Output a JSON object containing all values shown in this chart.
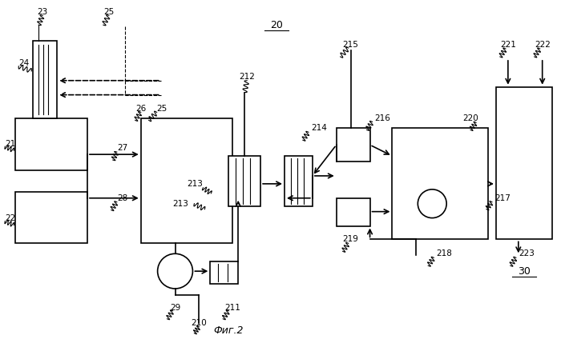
{
  "bg_color": "#ffffff",
  "lw": 1.2,
  "thin_lw": 0.8
}
